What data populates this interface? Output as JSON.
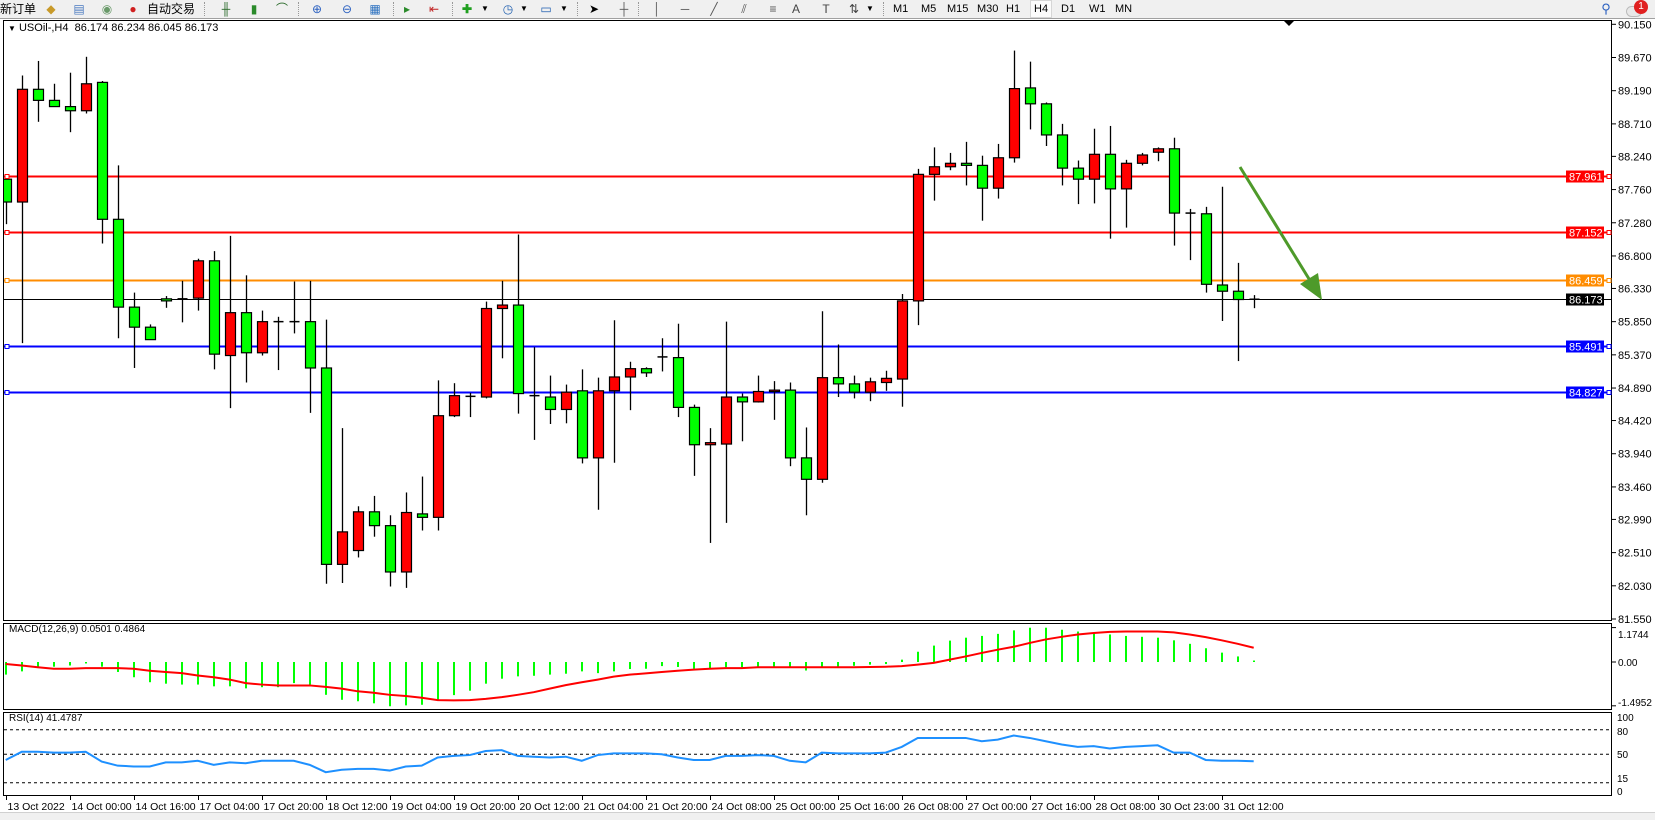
{
  "toolbar": {
    "new_order_label": "新订单",
    "autotrading_label": "自动交易",
    "timeframes": [
      "M1",
      "M5",
      "M15",
      "M30",
      "H1",
      "H4",
      "D1",
      "W1",
      "MN"
    ],
    "active_timeframe": "H4",
    "notification_count": "1",
    "icons": [
      "new-order-icon",
      "market-watch-icon",
      "data-window-icon",
      "signals-icon",
      "autotrading-icon",
      "bar-chart-icon",
      "candlestick-icon",
      "line-chart-icon",
      "zoom-in-icon",
      "zoom-out-icon",
      "tile-windows-icon",
      "auto-scroll-icon",
      "chart-shift-icon",
      "indicators-icon",
      "periods-icon",
      "templates-icon",
      "cursor-icon",
      "crosshair-icon",
      "vertical-line-icon",
      "horizontal-line-icon",
      "trendline-icon",
      "equidistant-channel-icon",
      "fibonacci-icon",
      "text-icon",
      "text-label-icon",
      "arrows-icon",
      "search-icon",
      "notifications-icon"
    ]
  },
  "chart": {
    "symbol_header": "USOil-,H4  86.174 86.234 86.045 86.173",
    "bull_color": "#ff0000",
    "bear_color": "#00ff00",
    "bid_price": "86.173",
    "levels": [
      {
        "price": 87.961,
        "label": "87.961",
        "color": "#ff0000"
      },
      {
        "price": 87.152,
        "label": "87.152",
        "color": "#ff0000"
      },
      {
        "price": 86.459,
        "label": "86.459",
        "color": "#ff8c00"
      },
      {
        "price": 85.491,
        "label": "85.491",
        "color": "#0000ff"
      },
      {
        "price": 84.827,
        "label": "84.827",
        "color": "#0000ff"
      }
    ],
    "arrow_color": "#4e9a2a",
    "price_axis": {
      "range": [
        81.55,
        90.15
      ],
      "ticks": [
        "90.150",
        "89.670",
        "89.190",
        "88.710",
        "88.240",
        "87.760",
        "87.280",
        "86.800",
        "86.330",
        "85.850",
        "85.370",
        "84.890",
        "84.420",
        "83.940",
        "83.460",
        "82.990",
        "82.510",
        "82.030",
        "81.550"
      ]
    },
    "time_labels": [
      "13 Oct 2022",
      "14 Oct 00:00",
      "14 Oct 16:00",
      "17 Oct 04:00",
      "17 Oct 20:00",
      "18 Oct 12:00",
      "19 Oct 04:00",
      "19 Oct 20:00",
      "20 Oct 12:00",
      "21 Oct 04:00",
      "21 Oct 20:00",
      "24 Oct 08:00",
      "25 Oct 00:00",
      "25 Oct 16:00",
      "26 Oct 08:00",
      "27 Oct 00:00",
      "27 Oct 16:00",
      "28 Oct 08:00",
      "30 Oct 23:00",
      "31 Oct 12:00"
    ],
    "ohlc": [
      [
        87.91,
        87.95,
        87.26,
        87.58
      ],
      [
        87.58,
        89.41,
        85.54,
        89.21
      ],
      [
        89.21,
        89.62,
        88.74,
        89.05
      ],
      [
        89.05,
        89.29,
        88.96,
        88.96
      ],
      [
        88.96,
        89.45,
        88.59,
        88.9
      ],
      [
        88.9,
        89.68,
        88.86,
        89.29
      ],
      [
        89.31,
        89.33,
        86.98,
        87.33
      ],
      [
        87.33,
        88.11,
        85.61,
        86.06
      ],
      [
        86.06,
        86.27,
        85.18,
        85.77
      ],
      [
        85.77,
        85.81,
        85.59,
        85.59
      ],
      [
        86.18,
        86.22,
        86.05,
        86.15
      ],
      [
        86.18,
        86.44,
        85.84,
        86.18
      ],
      [
        86.19,
        86.76,
        86.01,
        86.73
      ],
      [
        86.73,
        86.87,
        85.16,
        85.38
      ],
      [
        85.36,
        87.09,
        84.6,
        85.98
      ],
      [
        85.98,
        86.52,
        84.97,
        85.4
      ],
      [
        85.4,
        86.01,
        85.36,
        85.85
      ],
      [
        85.85,
        85.92,
        85.15,
        85.85
      ],
      [
        85.85,
        86.43,
        85.68,
        85.85
      ],
      [
        85.85,
        86.44,
        84.53,
        85.18
      ],
      [
        85.18,
        85.88,
        82.06,
        82.34
      ],
      [
        82.34,
        84.31,
        82.07,
        82.81
      ],
      [
        82.54,
        83.18,
        82.44,
        83.1
      ],
      [
        83.1,
        83.33,
        82.74,
        82.9
      ],
      [
        82.9,
        83.05,
        82.02,
        82.23
      ],
      [
        82.23,
        83.38,
        82.0,
        83.09
      ],
      [
        83.07,
        83.61,
        82.83,
        83.02
      ],
      [
        83.02,
        85.0,
        82.83,
        84.49
      ],
      [
        84.49,
        84.96,
        84.47,
        84.78
      ],
      [
        84.77,
        84.82,
        84.47,
        84.77
      ],
      [
        84.76,
        86.14,
        84.74,
        86.04
      ],
      [
        86.04,
        86.44,
        85.32,
        86.09
      ],
      [
        86.09,
        87.11,
        84.52,
        84.81
      ],
      [
        84.78,
        85.48,
        84.14,
        84.78
      ],
      [
        84.76,
        85.07,
        84.37,
        84.58
      ],
      [
        84.58,
        84.94,
        84.38,
        84.83
      ],
      [
        84.85,
        85.16,
        83.8,
        83.88
      ],
      [
        83.88,
        85.04,
        83.13,
        84.85
      ],
      [
        84.85,
        85.87,
        83.81,
        85.05
      ],
      [
        85.05,
        85.27,
        84.57,
        85.17
      ],
      [
        85.17,
        85.19,
        85.05,
        85.11
      ],
      [
        85.34,
        85.61,
        85.13,
        85.34
      ],
      [
        85.33,
        85.82,
        84.47,
        84.61
      ],
      [
        84.61,
        84.65,
        83.62,
        84.07
      ],
      [
        84.07,
        84.31,
        82.65,
        84.1
      ],
      [
        84.08,
        85.85,
        82.94,
        84.76
      ],
      [
        84.76,
        84.81,
        84.12,
        84.69
      ],
      [
        84.69,
        85.07,
        84.68,
        84.84
      ],
      [
        84.84,
        84.99,
        84.43,
        84.86
      ],
      [
        84.86,
        84.97,
        83.76,
        83.88
      ],
      [
        83.88,
        84.32,
        83.05,
        83.57
      ],
      [
        83.57,
        86.0,
        83.52,
        85.04
      ],
      [
        85.04,
        85.52,
        84.76,
        84.95
      ],
      [
        84.95,
        85.07,
        84.74,
        84.83
      ],
      [
        84.83,
        85.04,
        84.7,
        84.98
      ],
      [
        84.97,
        85.14,
        84.85,
        85.03
      ],
      [
        85.02,
        86.25,
        84.62,
        86.15
      ],
      [
        86.15,
        88.06,
        85.8,
        87.98
      ],
      [
        87.98,
        88.37,
        87.6,
        88.09
      ],
      [
        88.09,
        88.29,
        88.04,
        88.14
      ],
      [
        88.14,
        88.45,
        87.82,
        88.11
      ],
      [
        88.11,
        88.25,
        87.31,
        87.78
      ],
      [
        87.78,
        88.42,
        87.63,
        88.22
      ],
      [
        88.22,
        89.77,
        88.15,
        89.22
      ],
      [
        89.23,
        89.61,
        88.63,
        89.0
      ],
      [
        89.0,
        89.02,
        88.39,
        88.55
      ],
      [
        88.55,
        88.71,
        87.82,
        88.07
      ],
      [
        88.07,
        88.18,
        87.55,
        87.91
      ],
      [
        87.91,
        88.64,
        87.56,
        88.27
      ],
      [
        88.27,
        88.68,
        87.05,
        87.77
      ],
      [
        87.77,
        88.19,
        87.21,
        88.14
      ],
      [
        88.14,
        88.29,
        88.11,
        88.26
      ],
      [
        88.3,
        88.37,
        88.17,
        88.35
      ],
      [
        88.35,
        88.51,
        86.95,
        87.42
      ],
      [
        87.42,
        87.48,
        86.74,
        87.42
      ],
      [
        87.41,
        87.51,
        86.27,
        86.39
      ],
      [
        86.38,
        87.8,
        85.86,
        86.29
      ],
      [
        86.29,
        86.7,
        85.28,
        86.17
      ],
      [
        86.174,
        86.234,
        86.045,
        86.173
      ]
    ]
  },
  "macd": {
    "label": "MACD(12,26,9) 0.0501 0.4864",
    "axis_labels": [
      "1.1744",
      "0.00",
      "-1.4952"
    ],
    "histogram_color": "#00ff00",
    "signal_color": "#ff0000",
    "histogram": [
      -0.43,
      -0.32,
      -0.18,
      -0.16,
      -0.12,
      -0.05,
      -0.16,
      -0.34,
      -0.52,
      -0.69,
      -0.74,
      -0.77,
      -0.77,
      -0.83,
      -0.83,
      -0.9,
      -0.86,
      -0.86,
      -0.72,
      -0.77,
      -1.12,
      -1.29,
      -1.34,
      -1.41,
      -1.51,
      -1.48,
      -1.46,
      -1.29,
      -1.13,
      -0.98,
      -0.74,
      -0.57,
      -0.49,
      -0.47,
      -0.43,
      -0.4,
      -0.32,
      -0.38,
      -0.32,
      -0.24,
      -0.23,
      -0.14,
      -0.17,
      -0.23,
      -0.21,
      -0.18,
      -0.18,
      -0.17,
      -0.17,
      -0.18,
      -0.29,
      -0.17,
      -0.17,
      -0.13,
      -0.09,
      -0.07,
      0.08,
      0.35,
      0.56,
      0.73,
      0.83,
      0.89,
      0.96,
      1.08,
      1.17,
      1.17,
      1.1,
      1.04,
      0.99,
      0.94,
      0.89,
      0.86,
      0.83,
      0.74,
      0.62,
      0.47,
      0.32,
      0.19,
      0.0501
    ],
    "signal": [
      -0.07,
      -0.12,
      -0.18,
      -0.23,
      -0.23,
      -0.21,
      -0.21,
      -0.21,
      -0.23,
      -0.3,
      -0.34,
      -0.38,
      -0.46,
      -0.52,
      -0.6,
      -0.72,
      -0.77,
      -0.8,
      -0.8,
      -0.8,
      -0.85,
      -0.91,
      -1.0,
      -1.05,
      -1.12,
      -1.16,
      -1.22,
      -1.3,
      -1.31,
      -1.3,
      -1.26,
      -1.2,
      -1.12,
      -1.03,
      -0.91,
      -0.79,
      -0.69,
      -0.6,
      -0.5,
      -0.43,
      -0.39,
      -0.34,
      -0.3,
      -0.26,
      -0.23,
      -0.21,
      -0.21,
      -0.18,
      -0.18,
      -0.18,
      -0.18,
      -0.18,
      -0.18,
      -0.18,
      -0.17,
      -0.16,
      -0.14,
      -0.09,
      -0.03,
      0.08,
      0.19,
      0.31,
      0.42,
      0.52,
      0.65,
      0.77,
      0.86,
      0.94,
      0.99,
      1.03,
      1.04,
      1.04,
      1.04,
      1.01,
      0.94,
      0.85,
      0.74,
      0.62,
      0.4864
    ]
  },
  "rsi": {
    "label": "RSI(14) 41.4787",
    "axis_labels": [
      "100",
      "80",
      "50",
      "15",
      "0"
    ],
    "levels": [
      80,
      50,
      15
    ],
    "line_color": "#1e90ff",
    "values": [
      43,
      53,
      53,
      52,
      52,
      53,
      41,
      36,
      35,
      35,
      40,
      40,
      42,
      37,
      40,
      39,
      42,
      42,
      42,
      37,
      28,
      31,
      32,
      32,
      30,
      35,
      36,
      46,
      48,
      49,
      54,
      55,
      48,
      47,
      46,
      47,
      42,
      49,
      51,
      51,
      51,
      50,
      46,
      43,
      43,
      48,
      48,
      49,
      48,
      42,
      40,
      52,
      51,
      51,
      51,
      52,
      59,
      70,
      70,
      70,
      70,
      66,
      68,
      73,
      70,
      66,
      62,
      59,
      60,
      57,
      59,
      60,
      61,
      52,
      52,
      43,
      42,
      42,
      41.4787
    ]
  }
}
